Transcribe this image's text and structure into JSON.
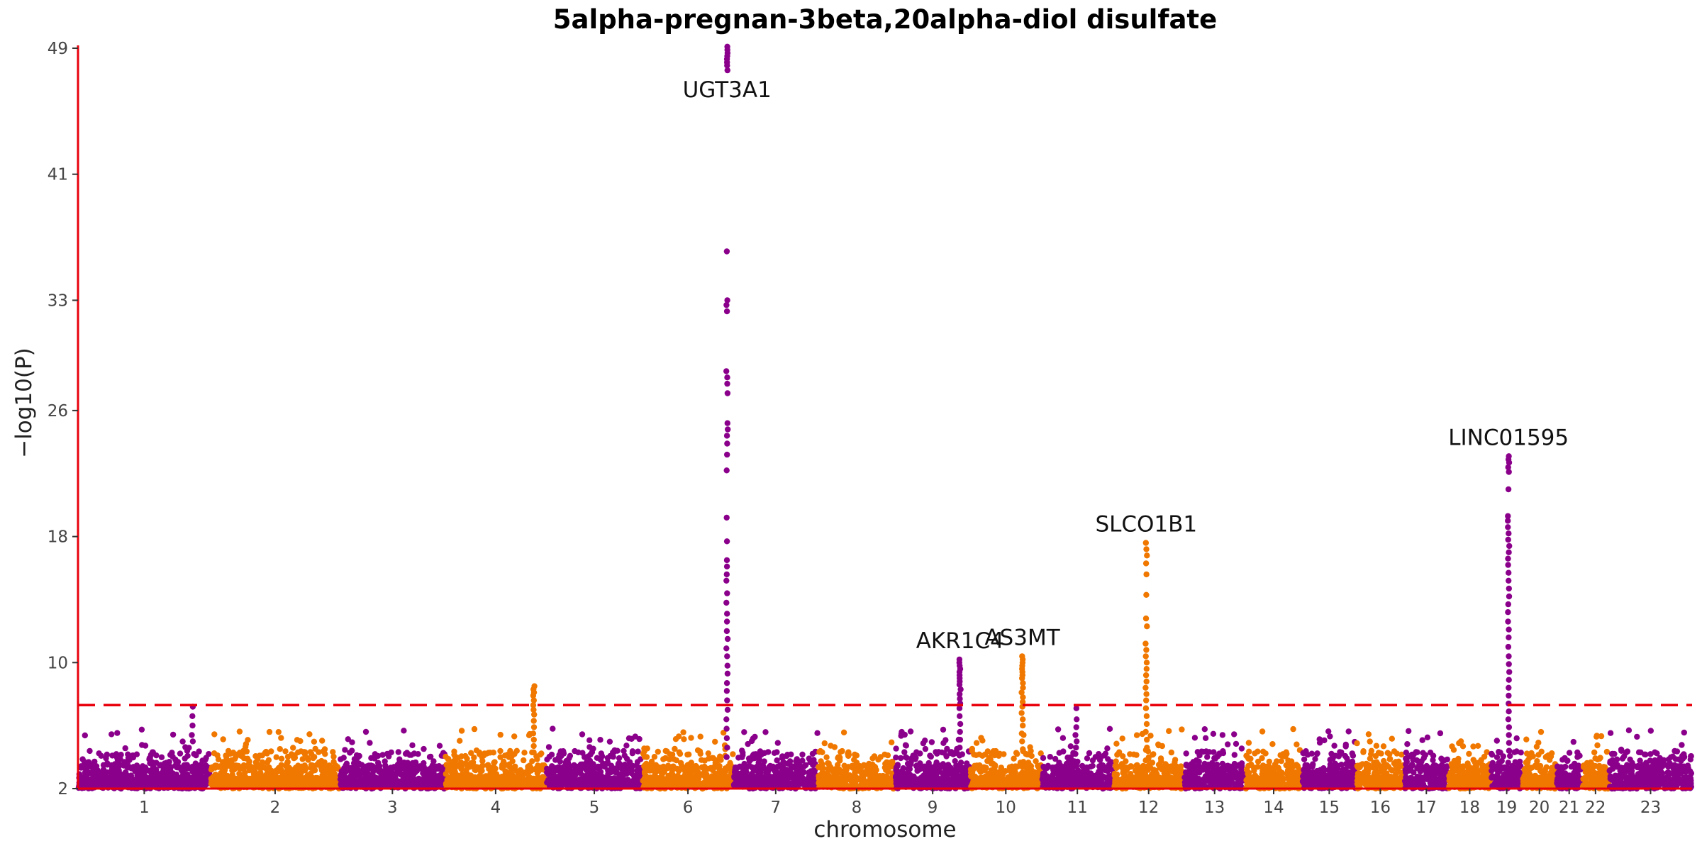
{
  "chart_data": {
    "type": "scatter",
    "title": "5alpha-pregnan-3beta,20alpha-diol disulfate",
    "xlabel": "chromosome",
    "ylabel": "−log10(P)",
    "ylim": [
      2,
      49
    ],
    "yticks": [
      2,
      10,
      18,
      26,
      33,
      41,
      49
    ],
    "significance_threshold": 7.3,
    "colors": {
      "odd": "#8b008b",
      "even": "#f07800",
      "threshold": "#e8000b",
      "axis": "#e8000b"
    },
    "grid": false,
    "chromosomes": [
      {
        "label": "1",
        "start": 0,
        "end": 249
      },
      {
        "label": "2",
        "start": 249,
        "end": 492
      },
      {
        "label": "3",
        "start": 492,
        "end": 690
      },
      {
        "label": "4",
        "start": 690,
        "end": 880
      },
      {
        "label": "5",
        "start": 880,
        "end": 1061
      },
      {
        "label": "6",
        "start": 1061,
        "end": 1232
      },
      {
        "label": "7",
        "start": 1232,
        "end": 1391
      },
      {
        "label": "8",
        "start": 1391,
        "end": 1536
      },
      {
        "label": "9",
        "start": 1536,
        "end": 1677
      },
      {
        "label": "10",
        "start": 1677,
        "end": 1811
      },
      {
        "label": "11",
        "start": 1811,
        "end": 1946
      },
      {
        "label": "12",
        "start": 1946,
        "end": 2079
      },
      {
        "label": "13",
        "start": 2079,
        "end": 2194
      },
      {
        "label": "14",
        "start": 2194,
        "end": 2301
      },
      {
        "label": "15",
        "start": 2301,
        "end": 2403
      },
      {
        "label": "16",
        "start": 2403,
        "end": 2493
      },
      {
        "label": "17",
        "start": 2493,
        "end": 2576
      },
      {
        "label": "18",
        "start": 2576,
        "end": 2656
      },
      {
        "label": "19",
        "start": 2656,
        "end": 2715
      },
      {
        "label": "20",
        "start": 2715,
        "end": 2779
      },
      {
        "label": "21",
        "start": 2779,
        "end": 2827
      },
      {
        "label": "22",
        "start": 2827,
        "end": 2878
      },
      {
        "label": "23",
        "start": 2878,
        "end": 3034
      }
    ],
    "peaks": [
      {
        "chr": "5",
        "pos": 1220,
        "label": "UGT3A1",
        "label_position": "below",
        "values": [
          49.1,
          48.9,
          48.7,
          48.5,
          48.3,
          48.1,
          47.9,
          47.6,
          36.1,
          33.0,
          32.7,
          32.3,
          28.5,
          28.1,
          27.7,
          27.1,
          25.2,
          24.8,
          24.4,
          23.9,
          23.2,
          22.2,
          19.2,
          17.7,
          16.5,
          16.1,
          15.6,
          15.2,
          14.4,
          13.8,
          13.1,
          12.6,
          12.0,
          11.5,
          10.9,
          10.4,
          9.8,
          9.3,
          8.7,
          8.2,
          7.6,
          7.0,
          6.4,
          5.8,
          5.2,
          4.6,
          4.0
        ]
      },
      {
        "chr": "9",
        "pos": 1658,
        "label": "AKR1C4",
        "label_position": "above",
        "values": [
          10.2,
          10.0,
          9.8,
          9.6,
          9.4,
          9.2,
          9.0,
          8.8,
          8.6,
          8.3,
          8.0,
          7.7,
          7.4,
          7.1,
          6.6,
          6.1,
          5.6,
          5.1,
          4.6,
          4.1
        ]
      },
      {
        "chr": "10",
        "pos": 1775,
        "label": "AS3MT",
        "label_position": "above",
        "values": [
          10.4,
          10.2,
          10.0,
          9.8,
          9.6,
          9.4,
          9.2,
          9.0,
          8.7,
          8.4,
          8.1,
          7.8,
          7.5,
          7.2,
          6.8,
          6.4,
          6.0,
          5.5,
          5.0,
          4.5
        ]
      },
      {
        "chr": "12",
        "pos": 2008,
        "label": "SLCO1B1",
        "label_position": "above",
        "values": [
          17.6,
          17.2,
          16.8,
          16.3,
          15.6,
          14.3,
          12.8,
          12.3,
          11.2,
          10.8,
          10.4,
          10.0,
          9.6,
          9.2,
          8.8,
          8.4,
          8.0,
          7.6,
          7.1,
          6.6,
          6.1,
          5.6,
          5.1,
          4.6
        ]
      },
      {
        "chr": "19",
        "pos": 2689,
        "label": "LINC01595",
        "label_position": "above",
        "values": [
          23.1,
          22.9,
          22.7,
          22.4,
          22.1,
          21.0,
          19.3,
          19.0,
          18.6,
          18.2,
          17.8,
          17.4,
          17.0,
          16.6,
          16.2,
          15.7,
          15.2,
          14.7,
          14.2,
          13.7,
          13.2,
          12.6,
          12.1,
          11.6,
          11.0,
          10.4,
          9.9,
          9.4,
          8.9,
          8.4,
          7.9,
          7.4,
          6.9,
          6.4,
          5.9,
          5.4,
          4.9,
          4.4
        ]
      },
      {
        "chr": "4",
        "pos": 857,
        "label": "",
        "label_position": "",
        "values": [
          8.5,
          8.3,
          8.1,
          7.9,
          7.6,
          7.3,
          7.0,
          6.7,
          6.3,
          5.9,
          5.5,
          5.1,
          4.7,
          4.3
        ]
      },
      {
        "chr": "11",
        "pos": 1876,
        "label": "",
        "label_position": "",
        "values": [
          7.1,
          6.4,
          5.9,
          5.4,
          5.0,
          4.6,
          4.2
        ]
      },
      {
        "chr": "1",
        "pos": 215,
        "label": "",
        "label_position": "",
        "values": [
          7.2,
          6.6,
          6.0,
          5.4,
          5.0
        ]
      }
    ]
  }
}
